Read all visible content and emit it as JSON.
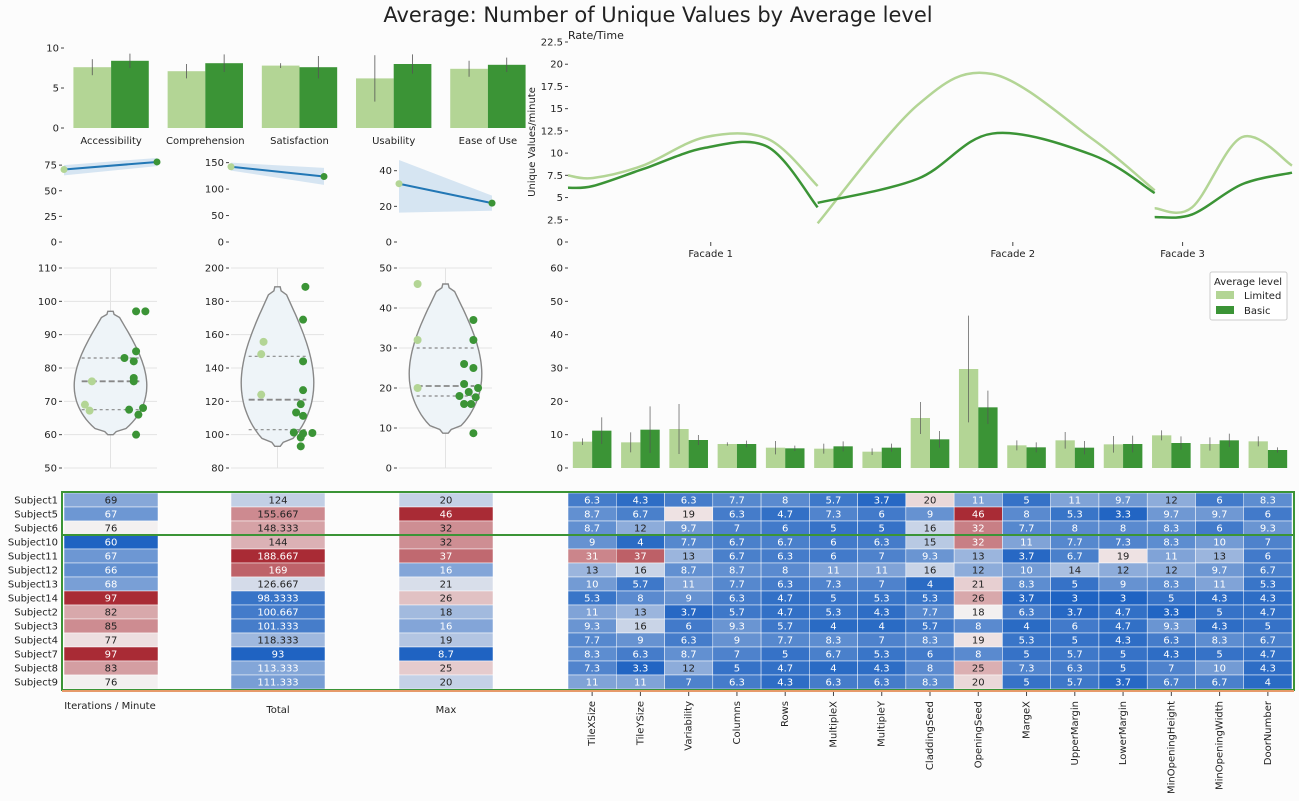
{
  "title": "Average: Number of Unique Values by Average level",
  "colors": {
    "limited": "#b3d595",
    "basic": "#3b9436",
    "line": "#2277b5",
    "band": "#c6dcee",
    "border": "#3b9436",
    "orange": "#e69a6a",
    "mid": "#f3f0f0",
    "cool": "#1f63c2",
    "warm": "#a92b35"
  },
  "chart_data": [
    {
      "id": "survey-bars",
      "type": "bar",
      "categories": [
        "Accessibility",
        "Comprehension",
        "Satisfaction",
        "Usability",
        "Ease of Use"
      ],
      "series": [
        {
          "values": [
            7.6,
            7.1,
            7.8,
            6.2,
            7.4
          ],
          "err": [
            1.0,
            0.9,
            0.3,
            2.9,
            1.0
          ]
        },
        {
          "values": [
            8.4,
            8.1,
            7.6,
            8.0,
            7.9
          ],
          "err": [
            0.9,
            1.1,
            1.4,
            1.2,
            0.9
          ]
        }
      ],
      "yticks": [
        0,
        5,
        10
      ],
      "ylim": [
        0,
        10
      ]
    },
    {
      "id": "reg-iter",
      "type": "scatter",
      "x": [
        0,
        1
      ],
      "y": [
        70.7,
        78.1
      ],
      "band_low": [
        65,
        74
      ],
      "band_high": [
        75,
        82
      ],
      "yticks": [
        0,
        25,
        50,
        75
      ],
      "ylim": [
        0,
        80
      ]
    },
    {
      "id": "reg-total",
      "type": "scatter",
      "x": [
        0,
        1
      ],
      "y": [
        142.3,
        123.8
      ],
      "band_low": [
        135,
        108
      ],
      "band_high": [
        150,
        140
      ],
      "yticks": [
        0,
        50,
        100,
        150
      ],
      "ylim": [
        0,
        155
      ]
    },
    {
      "id": "reg-max",
      "type": "scatter",
      "x": [
        0,
        1
      ],
      "y": [
        32.7,
        21.8
      ],
      "band_low": [
        16.5,
        17.5
      ],
      "band_high": [
        46,
        26
      ],
      "yticks": [
        0,
        20,
        40
      ],
      "ylim": [
        0,
        46
      ]
    },
    {
      "id": "rate-time",
      "type": "line",
      "title": "Rate/Time",
      "ylabel": "Unique Values/minute",
      "categories": [
        "Facade 1",
        "Facade 2",
        "Facade 3"
      ],
      "yticks": [
        0.0,
        2.5,
        5.0,
        7.5,
        10.0,
        12.5,
        15.0,
        17.5,
        20.0,
        22.5
      ],
      "ylim": [
        0,
        22.5
      ],
      "series": [
        {
          "x": [
            0,
            0.1,
            0.3,
            0.55,
            0.8,
            1.0,
            1.0,
            1.4,
            1.7,
            2.1,
            2.35,
            2.35,
            2.5,
            2.7,
            2.9
          ],
          "y": [
            7.5,
            7.2,
            8.6,
            11.8,
            11.6,
            6.3,
            2.1,
            15.4,
            18.9,
            11.6,
            5.8,
            3.8,
            3.9,
            11.8,
            8.6
          ]
        },
        {
          "x": [
            0,
            0.1,
            0.3,
            0.55,
            0.8,
            1.0,
            1.0,
            1.4,
            1.7,
            2.1,
            2.35,
            2.35,
            2.5,
            2.7,
            2.9
          ],
          "y": [
            6.1,
            6.3,
            8.2,
            10.6,
            10.7,
            3.9,
            4.4,
            7.1,
            12.2,
            9.8,
            5.5,
            2.8,
            3.1,
            6.5,
            7.8
          ]
        }
      ]
    },
    {
      "id": "violin-iter",
      "type": "scatter",
      "yticks": [
        50,
        60,
        70,
        80,
        90,
        100,
        110
      ],
      "ylim": [
        50,
        110
      ],
      "violin_range": [
        60,
        97
      ],
      "quartiles": [
        67.5,
        76,
        83
      ],
      "points_limited": [
        [
          -0.4,
          76
        ],
        [
          -0.45,
          67.2
        ],
        [
          -0.55,
          69
        ]
      ],
      "points_basic": [
        [
          0.55,
          97
        ],
        [
          0.75,
          97
        ],
        [
          0.3,
          83
        ],
        [
          0.55,
          85
        ],
        [
          0.5,
          82
        ],
        [
          0.5,
          77
        ],
        [
          0.5,
          76
        ],
        [
          0.4,
          67.5
        ],
        [
          0.6,
          66
        ],
        [
          0.7,
          68
        ],
        [
          0.55,
          60
        ]
      ]
    },
    {
      "id": "violin-total",
      "type": "scatter",
      "yticks": [
        80,
        100,
        120,
        140,
        160,
        180,
        200
      ],
      "ylim": [
        80,
        200
      ],
      "violin_range": [
        93,
        188.7
      ],
      "quartiles": [
        103,
        121,
        147
      ],
      "points_limited": [
        [
          -0.3,
          155.7
        ],
        [
          -0.35,
          148.3
        ],
        [
          -0.35,
          124
        ]
      ],
      "points_basic": [
        [
          0.6,
          188.7
        ],
        [
          0.55,
          169
        ],
        [
          0.55,
          144
        ],
        [
          0.55,
          126.7
        ],
        [
          0.5,
          118.3
        ],
        [
          0.4,
          113.3
        ],
        [
          0.55,
          111.3
        ],
        [
          0.35,
          101.3
        ],
        [
          0.55,
          100.7
        ],
        [
          0.75,
          101
        ],
        [
          0.5,
          98.3
        ],
        [
          0.5,
          93
        ]
      ]
    },
    {
      "id": "violin-max",
      "type": "scatter",
      "yticks": [
        0,
        10,
        20,
        30,
        40,
        50
      ],
      "ylim": [
        0,
        50
      ],
      "violin_range": [
        8.7,
        46
      ],
      "quartiles": [
        18,
        20.5,
        30
      ],
      "points_limited": [
        [
          -0.6,
          46
        ],
        [
          -0.6,
          32
        ],
        [
          -0.6,
          20
        ]
      ],
      "points_basic": [
        [
          0.6,
          37
        ],
        [
          0.6,
          32
        ],
        [
          0.4,
          26
        ],
        [
          0.6,
          25
        ],
        [
          0.4,
          21
        ],
        [
          0.5,
          19
        ],
        [
          0.7,
          20
        ],
        [
          0.3,
          18
        ],
        [
          0.65,
          17.7
        ],
        [
          0.4,
          16
        ],
        [
          0.55,
          16
        ],
        [
          0.6,
          8.7
        ]
      ]
    },
    {
      "id": "param-bars",
      "type": "bar",
      "categories": [
        "TileXSize",
        "TileYSize",
        "Variability",
        "Columns",
        "Rows",
        "MultipleX",
        "MultipleY",
        "CladdingSeed",
        "OpeningSeed",
        "MargeX",
        "UpperMargin",
        "LowerMargin",
        "MinOpeningHeight",
        "MinOpeningWidth",
        "DoorNumber"
      ],
      "series": [
        {
          "name": "Limited",
          "values": [
            7.9,
            7.7,
            11.7,
            7.2,
            6.1,
            5.8,
            4.9,
            15.0,
            29.7,
            6.8,
            8.3,
            7.1,
            9.8,
            7.2,
            8.0
          ],
          "err": [
            1.0,
            3.0,
            7.5,
            0.5,
            2.0,
            1.5,
            1.0,
            4.8,
            16.0,
            1.5,
            2.5,
            2.5,
            1.5,
            2.0,
            1.5
          ]
        },
        {
          "name": "Basic",
          "values": [
            11.2,
            11.5,
            8.4,
            7.2,
            5.9,
            6.5,
            6.1,
            8.6,
            18.2,
            6.2,
            6.1,
            7.2,
            7.5,
            8.3,
            5.4
          ],
          "err": [
            4.0,
            7.0,
            1.5,
            1.0,
            0.8,
            1.5,
            1.2,
            2.5,
            5.0,
            1.5,
            2.0,
            2.5,
            2.0,
            2.0,
            0.8
          ]
        }
      ],
      "legend": {
        "title": "Average level",
        "position": "right"
      },
      "yticks": [
        0,
        10,
        20,
        30,
        40,
        50,
        60
      ],
      "ylim": [
        0,
        60
      ]
    }
  ],
  "table": {
    "subjects": [
      "Subject1",
      "Subject5",
      "Subject6",
      "Subject10",
      "Subject11",
      "Subject12",
      "Subject13",
      "Subject14",
      "Subject2",
      "Subject3",
      "Subject4",
      "Subject7",
      "Subject8",
      "Subject9"
    ],
    "summary_columns": [
      "Iterations / Minute",
      "Total",
      "Max"
    ],
    "iterations": [
      "69",
      "67",
      "76",
      "60",
      "67",
      "66",
      "68",
      "97",
      "82",
      "85",
      "77",
      "97",
      "83",
      "76"
    ],
    "total": [
      "124",
      "155.667",
      "148.333",
      "144",
      "188.667",
      "169",
      "126.667",
      "98.3333",
      "100.667",
      "101.333",
      "118.333",
      "93",
      "113.333",
      "111.333"
    ],
    "max": [
      "20",
      "46",
      "32",
      "32",
      "37",
      "16",
      "21",
      "26",
      "18",
      "16",
      "19",
      "8.7",
      "25",
      "20"
    ],
    "param_columns": [
      "TileXSize",
      "TileYSize",
      "Variability",
      "Columns",
      "Rows",
      "MultipleX",
      "MultipleY",
      "CladdingSeed",
      "OpeningSeed",
      "MargeX",
      "UpperMargin",
      "LowerMargin",
      "MinOpeningHeight",
      "MinOpeningWidth",
      "DoorNumber"
    ],
    "params": [
      [
        "6.3",
        "4.3",
        "6.3",
        "7.7",
        "8",
        "5.7",
        "3.7",
        "20",
        "11",
        "5",
        "11",
        "9.7",
        "12",
        "6",
        "8.3"
      ],
      [
        "8.7",
        "6.7",
        "19",
        "6.3",
        "4.7",
        "7.3",
        "6",
        "9",
        "46",
        "8",
        "5.3",
        "3.3",
        "9.7",
        "9.7",
        "6"
      ],
      [
        "8.7",
        "12",
        "9.7",
        "7",
        "6",
        "5",
        "5",
        "16",
        "32",
        "7.7",
        "8",
        "8",
        "8.3",
        "6",
        "9.3"
      ],
      [
        "9",
        "4",
        "7.7",
        "6.7",
        "6.7",
        "6",
        "6.3",
        "15",
        "32",
        "11",
        "7.7",
        "7.3",
        "8.3",
        "10",
        "7"
      ],
      [
        "31",
        "37",
        "13",
        "6.7",
        "6.3",
        "6",
        "7",
        "9.3",
        "13",
        "3.7",
        "6.7",
        "19",
        "11",
        "13",
        "6"
      ],
      [
        "13",
        "16",
        "8.7",
        "8.7",
        "8",
        "11",
        "11",
        "16",
        "12",
        "10",
        "14",
        "12",
        "12",
        "9.7",
        "6.7"
      ],
      [
        "10",
        "5.7",
        "11",
        "7.7",
        "6.3",
        "7.3",
        "7",
        "4",
        "21",
        "8.3",
        "5",
        "9",
        "8.3",
        "11",
        "5.3"
      ],
      [
        "5.3",
        "8",
        "9",
        "6.3",
        "4.7",
        "5",
        "5.3",
        "5.3",
        "26",
        "3.7",
        "3",
        "3",
        "5",
        "4.3",
        "4.3"
      ],
      [
        "11",
        "13",
        "3.7",
        "5.7",
        "4.7",
        "5.3",
        "4.3",
        "7.7",
        "18",
        "6.3",
        "3.7",
        "4.7",
        "3.3",
        "5",
        "4.7"
      ],
      [
        "9.3",
        "16",
        "6",
        "9.3",
        "5.7",
        "4",
        "4",
        "5.7",
        "8",
        "4",
        "6",
        "4.7",
        "9.3",
        "4.3",
        "5"
      ],
      [
        "7.7",
        "9",
        "6.3",
        "9",
        "7.7",
        "8.3",
        "7",
        "8.3",
        "19",
        "5.3",
        "5",
        "4.3",
        "6.3",
        "8.3",
        "6.7"
      ],
      [
        "8.3",
        "6.3",
        "8.7",
        "7",
        "5",
        "6.7",
        "5.3",
        "6",
        "8",
        "5",
        "5.7",
        "5",
        "4.3",
        "5",
        "4.7"
      ],
      [
        "7.3",
        "3.3",
        "12",
        "5",
        "4.7",
        "4",
        "4.3",
        "8",
        "25",
        "7.3",
        "6.3",
        "5",
        "7",
        "10",
        "4.3"
      ],
      [
        "11",
        "11",
        "7",
        "6.3",
        "4.3",
        "6.3",
        "6.3",
        "8.3",
        "20",
        "5",
        "5.7",
        "3.7",
        "6.7",
        "6.7",
        "4"
      ]
    ]
  }
}
